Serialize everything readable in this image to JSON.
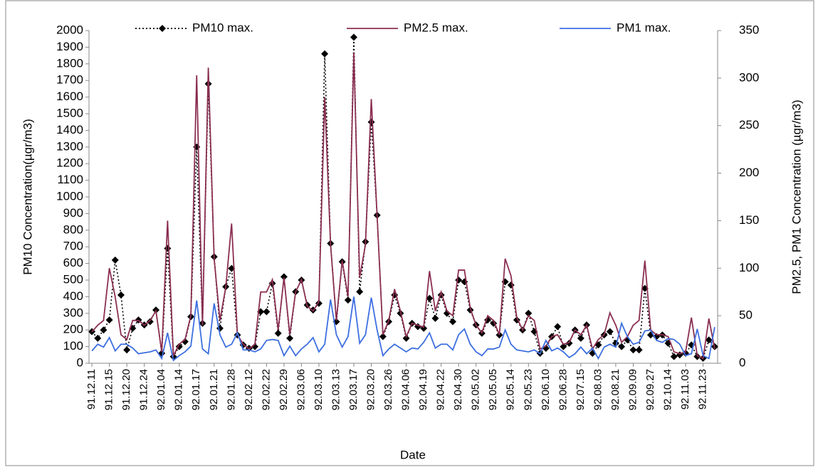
{
  "chart_data": {
    "type": "line",
    "x_label": "Date",
    "y_label": "PM10 Concentration(µgr/m3)",
    "y2_label": "PM2.5, PM1 Concentration (µgr/m3)",
    "categories": [
      "91.12.11",
      null,
      null,
      "91.12.15",
      null,
      null,
      "91.12.20",
      null,
      null,
      "91.12.24",
      null,
      null,
      "92.01.04",
      null,
      null,
      "92.01.14",
      null,
      null,
      "92.01.17",
      null,
      null,
      "92.01.21",
      null,
      null,
      "92.01.28",
      null,
      null,
      "92.02.12",
      null,
      null,
      "92.02.22",
      null,
      null,
      "92.02.29",
      null,
      null,
      "92.03.06",
      null,
      null,
      "92.03.10",
      null,
      null,
      "92.03.13",
      null,
      null,
      "92.03.17",
      null,
      null,
      "92.03.20",
      null,
      null,
      "92.03.26",
      null,
      null,
      "92.04.06",
      null,
      null,
      "92.04.19",
      null,
      null,
      "92.04.22",
      null,
      null,
      "92.04.30",
      null,
      null,
      "92.05.02",
      null,
      null,
      "92.05.05",
      null,
      null,
      "92.05.14",
      null,
      null,
      "92.05.23",
      null,
      null,
      "92.06.10",
      null,
      null,
      "92.06.28",
      null,
      null,
      "92.07.15",
      null,
      null,
      "92.08.03",
      null,
      null,
      "92.08.21",
      null,
      null,
      "92.09.09",
      null,
      null,
      "92.09.27",
      null,
      null,
      "92.10.14",
      null,
      null,
      "92.11.03",
      null,
      null,
      "92.11.23",
      null,
      null
    ],
    "series": [
      {
        "name": "PM10 max.",
        "color": "#000000",
        "axis": "y",
        "values": [
          190,
          150,
          200,
          260,
          620,
          410,
          80,
          210,
          260,
          230,
          250,
          320,
          60,
          690,
          40,
          100,
          130,
          280,
          1300,
          240,
          1680,
          640,
          210,
          460,
          570,
          170,
          110,
          90,
          100,
          310,
          310,
          480,
          180,
          520,
          150,
          430,
          500,
          350,
          320,
          360,
          1860,
          720,
          250,
          610,
          380,
          1960,
          430,
          730,
          1450,
          890,
          160,
          250,
          410,
          300,
          150,
          240,
          220,
          210,
          390,
          270,
          410,
          300,
          250,
          500,
          490,
          320,
          230,
          180,
          260,
          240,
          170,
          490,
          470,
          260,
          200,
          300,
          190,
          60,
          90,
          160,
          220,
          100,
          120,
          200,
          150,
          230,
          60,
          110,
          170,
          190,
          120,
          100,
          140,
          80,
          80,
          450,
          170,
          160,
          170,
          120,
          40,
          50,
          60,
          110,
          40,
          30,
          140,
          100
        ]
      },
      {
        "name": "PM2.5 max.",
        "color": "#8b2f52",
        "axis": "y2",
        "values": [
          33,
          40,
          45,
          100,
          70,
          30,
          25,
          45,
          45,
          40,
          45,
          55,
          12,
          150,
          8,
          20,
          25,
          50,
          303,
          40,
          311,
          110,
          45,
          80,
          147,
          30,
          20,
          15,
          20,
          75,
          75,
          88,
          35,
          90,
          30,
          75,
          88,
          60,
          55,
          65,
          280,
          125,
          45,
          108,
          70,
          327,
          90,
          125,
          278,
          155,
          30,
          45,
          78,
          55,
          28,
          42,
          40,
          38,
          97,
          55,
          75,
          55,
          50,
          98,
          98,
          58,
          40,
          32,
          50,
          45,
          30,
          110,
          92,
          48,
          35,
          50,
          45,
          15,
          18,
          28,
          30,
          20,
          22,
          35,
          30,
          40,
          15,
          25,
          30,
          53,
          40,
          22,
          28,
          40,
          45,
          108,
          35,
          30,
          30,
          28,
          12,
          10,
          12,
          48,
          8,
          5,
          47,
          15
        ]
      },
      {
        "name": "PM1 max.",
        "color": "#3d6fe0",
        "axis": "y2",
        "values": [
          13,
          20,
          17,
          27,
          13,
          20,
          20,
          16,
          10,
          11,
          12,
          14,
          5,
          32,
          3,
          8,
          12,
          18,
          66,
          15,
          10,
          63,
          30,
          17,
          20,
          32,
          14,
          14,
          12,
          15,
          24,
          25,
          24,
          8,
          18,
          8,
          15,
          20,
          27,
          12,
          20,
          67,
          30,
          17,
          28,
          70,
          21,
          30,
          69,
          35,
          8,
          15,
          20,
          16,
          12,
          16,
          15,
          22,
          32,
          16,
          20,
          20,
          14,
          30,
          36,
          20,
          12,
          8,
          15,
          15,
          17,
          35,
          20,
          14,
          13,
          12,
          14,
          10,
          24,
          13,
          16,
          12,
          6,
          10,
          17,
          10,
          16,
          5,
          17,
          20,
          17,
          42,
          28,
          20,
          22,
          34,
          35,
          24,
          22,
          26,
          25,
          20,
          8,
          10,
          36,
          8,
          5,
          38
        ]
      }
    ],
    "ylim": [
      0,
      2000
    ],
    "yticks": [
      0,
      100,
      200,
      300,
      400,
      500,
      600,
      700,
      800,
      900,
      1000,
      1100,
      1200,
      1300,
      1400,
      1500,
      1600,
      1700,
      1800,
      1900,
      2000
    ],
    "y2lim": [
      0,
      350
    ],
    "y2ticks": [
      0,
      50,
      100,
      150,
      200,
      250,
      300,
      350
    ],
    "legend": "top"
  }
}
